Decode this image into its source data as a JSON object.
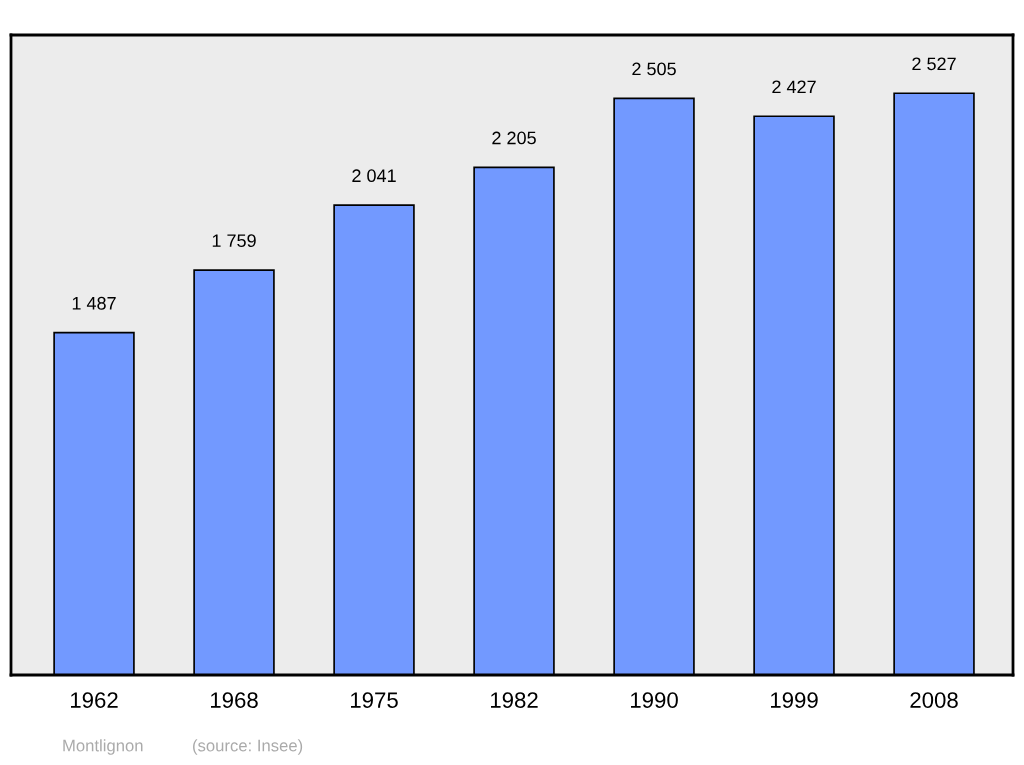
{
  "chart_data": {
    "type": "bar",
    "categories": [
      "1962",
      "1968",
      "1975",
      "1982",
      "1990",
      "1999",
      "2008"
    ],
    "values": [
      1487,
      1759,
      2041,
      2205,
      2505,
      2427,
      2527
    ],
    "value_labels": [
      "1 487",
      "1 759",
      "2 041",
      "2 205",
      "2 505",
      "2 427",
      "2 527"
    ],
    "color": "#7299ff",
    "ylim": [
      0,
      2780
    ],
    "tick_labels": "x",
    "grid": false,
    "legend": false,
    "annotations": [
      "Montlignon",
      "(source: Insee)"
    ]
  }
}
